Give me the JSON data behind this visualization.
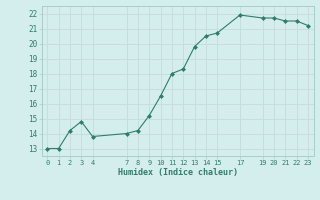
{
  "x": [
    0,
    1,
    2,
    3,
    4,
    7,
    8,
    9,
    10,
    11,
    12,
    13,
    14,
    15,
    17,
    19,
    20,
    21,
    22,
    23
  ],
  "y": [
    13.0,
    13.0,
    14.2,
    14.8,
    13.8,
    14.0,
    14.2,
    15.2,
    16.5,
    18.0,
    18.3,
    19.8,
    20.5,
    20.7,
    21.9,
    21.7,
    21.7,
    21.5,
    21.5,
    21.2
  ],
  "xlim": [
    -0.5,
    23.5
  ],
  "ylim": [
    12.5,
    22.5
  ],
  "yticks": [
    13,
    14,
    15,
    16,
    17,
    18,
    19,
    20,
    21,
    22
  ],
  "xticks": [
    0,
    1,
    2,
    3,
    4,
    7,
    8,
    9,
    10,
    11,
    12,
    13,
    14,
    15,
    17,
    19,
    20,
    21,
    22,
    23
  ],
  "xlabel": "Humidex (Indice chaleur)",
  "bg_color": "#d4eeee",
  "grid_color": "#c8dede",
  "line_color": "#2e7d6e",
  "marker_color": "#2e7d6e",
  "tick_label_color": "#2e7d6e",
  "xlabel_color": "#2e7d6e",
  "spine_color": "#aacccc"
}
